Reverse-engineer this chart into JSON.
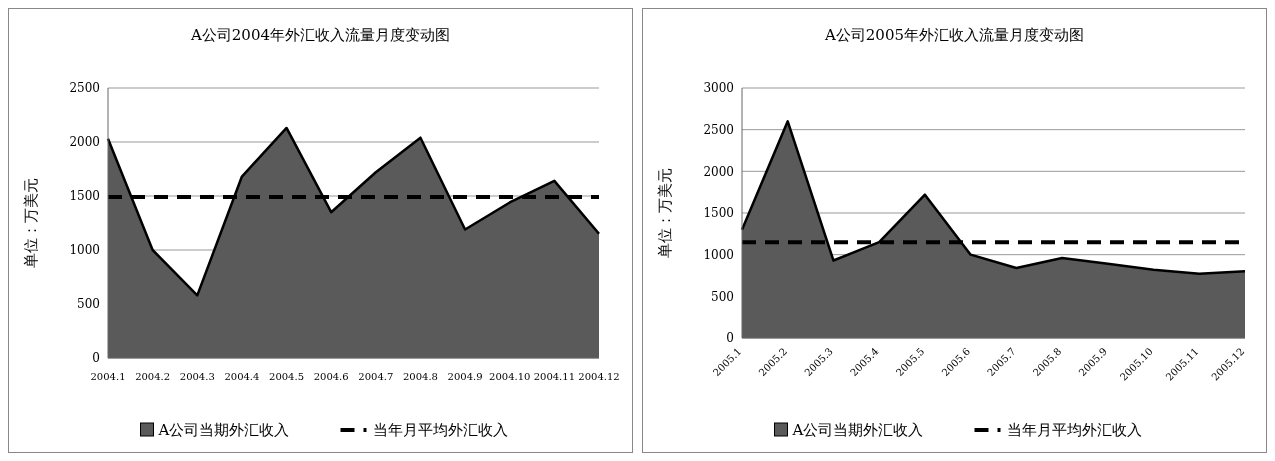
{
  "chart_data": [
    {
      "type": "area",
      "title": "A公司2004年外汇收入流量月度变动图",
      "ylabel": "单位：万美元",
      "categories": [
        "2004.1",
        "2004.2",
        "2004.3",
        "2004.4",
        "2004.5",
        "2004.6",
        "2004.7",
        "2004.8",
        "2004.9",
        "2004.10",
        "2004.11",
        "2004.12"
      ],
      "series": [
        {
          "name": "A公司当期外汇收入",
          "color": "#5a5a5a",
          "values": [
            2030,
            1000,
            580,
            1680,
            2130,
            1350,
            1720,
            2040,
            1190,
            1440,
            1640,
            1150
          ]
        },
        {
          "name": "当年月平均外汇收入",
          "type": "line",
          "color": "#000000",
          "line_style": "dashed",
          "values": [
            1490,
            1490,
            1490,
            1490,
            1490,
            1490,
            1490,
            1490,
            1490,
            1490,
            1490,
            1490
          ]
        }
      ],
      "ylim": [
        0,
        2500
      ],
      "yticks": [
        0,
        500,
        1000,
        1500,
        2000,
        2500
      ],
      "grid": "y",
      "legend": "bottom"
    },
    {
      "type": "area",
      "title": "A公司2005年外汇收入流量月度变动图",
      "ylabel": "单位：万美元",
      "categories": [
        "2005.1",
        "2005.2",
        "2005.3",
        "2005.4",
        "2005.5",
        "2005.6",
        "2005.7",
        "2005.8",
        "2005.9",
        "2005.10",
        "2005.11",
        "2005.12"
      ],
      "series": [
        {
          "name": "A公司当期外汇收入",
          "color": "#5a5a5a",
          "values": [
            1300,
            2600,
            930,
            1150,
            1720,
            1000,
            840,
            960,
            890,
            820,
            770,
            800
          ]
        },
        {
          "name": "当年月平均外汇收入",
          "type": "line",
          "color": "#000000",
          "line_style": "dashed",
          "values": [
            1150,
            1150,
            1150,
            1150,
            1150,
            1150,
            1150,
            1150,
            1150,
            1150,
            1150,
            1150
          ]
        }
      ],
      "ylim": [
        0,
        3000
      ],
      "yticks": [
        0,
        500,
        1000,
        1500,
        2000,
        2500,
        3000
      ],
      "grid": "y",
      "legend": "bottom"
    }
  ]
}
